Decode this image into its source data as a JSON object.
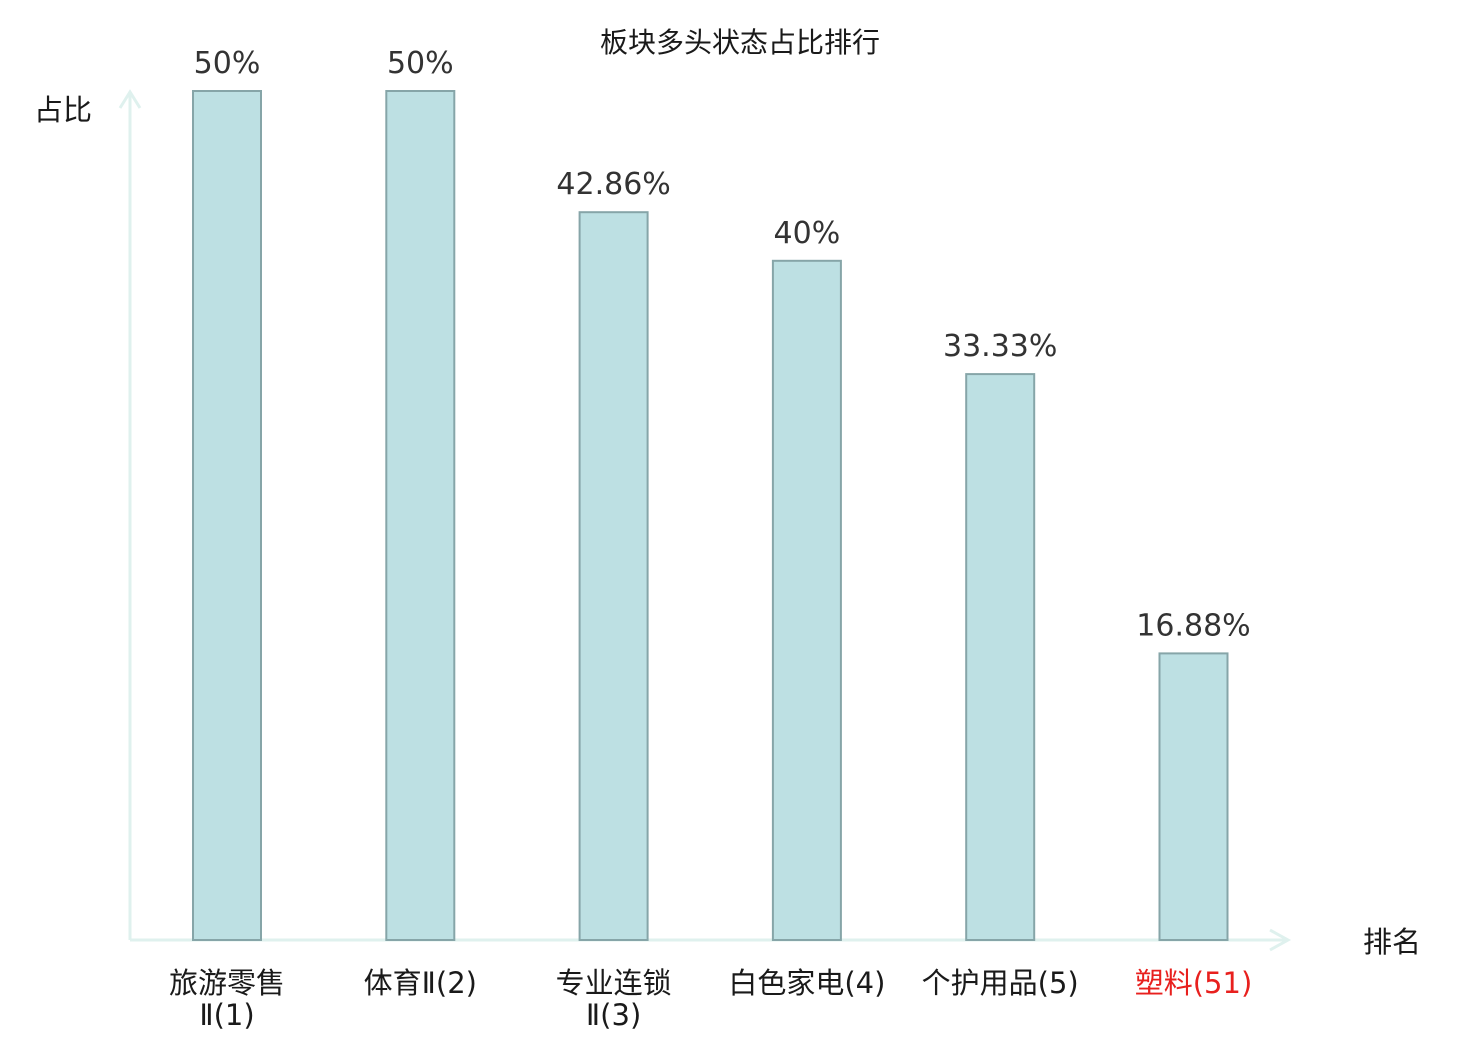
{
  "chart_data": {
    "type": "bar",
    "title": "板块多头状态占比排行",
    "ylabel": "占比",
    "xlabel": "排名",
    "ylim": [
      0,
      50
    ],
    "grid": false,
    "categories": [
      {
        "lines": [
          "旅游零售",
          "Ⅱ(1)"
        ],
        "highlight": false
      },
      {
        "lines": [
          "体育Ⅱ(2)"
        ],
        "highlight": false
      },
      {
        "lines": [
          "专业连锁",
          "Ⅱ(3)"
        ],
        "highlight": false
      },
      {
        "lines": [
          "白色家电(4)"
        ],
        "highlight": false
      },
      {
        "lines": [
          "个护用品(5)"
        ],
        "highlight": false
      },
      {
        "lines": [
          "塑料(51)"
        ],
        "highlight": true
      }
    ],
    "values": [
      50,
      50,
      42.86,
      40,
      33.33,
      16.88
    ],
    "value_labels": [
      "50%",
      "50%",
      "42.86%",
      "40%",
      "33.33%",
      "16.88%"
    ]
  },
  "colors": {
    "bar_fill": "#bde0e3",
    "bar_stroke": "#86a5a8",
    "axis": "#dff1ee",
    "text": "#1a1a1a",
    "highlight": "#e8201e"
  }
}
